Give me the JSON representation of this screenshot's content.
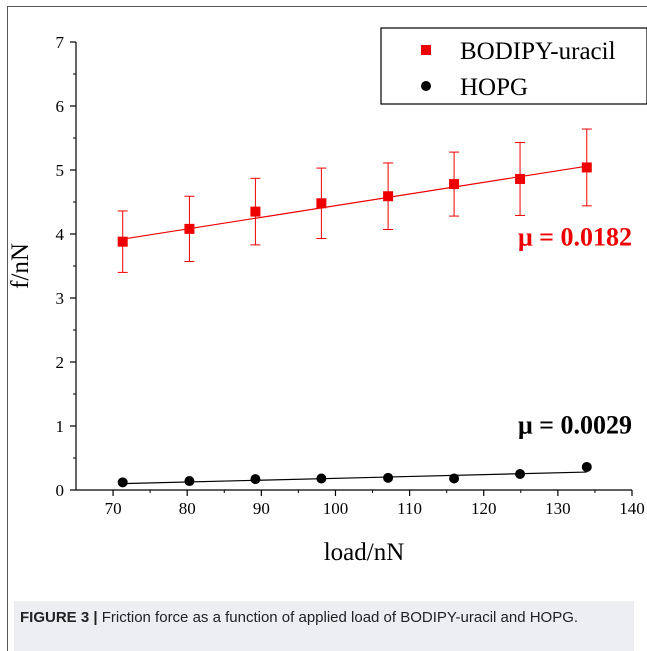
{
  "chart_data": {
    "type": "scatter",
    "xlabel": "load/nN",
    "ylabel": "f/nN",
    "xlim": [
      65,
      140
    ],
    "ylim": [
      0,
      7
    ],
    "xticks": [
      70,
      80,
      90,
      100,
      110,
      120,
      130,
      140
    ],
    "yticks": [
      0,
      1,
      2,
      3,
      4,
      5,
      6,
      7
    ],
    "grid": false,
    "legend_position": "top-right",
    "series": [
      {
        "name": "BODIPY-uracil",
        "color": "#ee0000",
        "marker": "square",
        "x": [
          71.3,
          80.3,
          89.2,
          98.1,
          107.1,
          116.0,
          124.9,
          133.9
        ],
        "y": [
          3.88,
          4.08,
          4.35,
          4.48,
          4.59,
          4.78,
          4.86,
          5.04
        ],
        "error_low": [
          0.48,
          0.51,
          0.52,
          0.55,
          0.52,
          0.5,
          0.57,
          0.6
        ],
        "error_high": [
          0.48,
          0.51,
          0.52,
          0.55,
          0.52,
          0.5,
          0.57,
          0.6
        ],
        "fit": {
          "x": [
            71.3,
            133.9
          ],
          "y": [
            3.92,
            5.06
          ]
        },
        "annotation": "μ = 0.0182"
      },
      {
        "name": "HOPG",
        "color": "#000000",
        "marker": "circle",
        "x": [
          71.3,
          80.3,
          89.2,
          98.1,
          107.1,
          116.0,
          124.9,
          133.9
        ],
        "y": [
          0.12,
          0.14,
          0.17,
          0.18,
          0.19,
          0.18,
          0.25,
          0.36
        ],
        "fit": {
          "x": [
            71.3,
            133.9
          ],
          "y": [
            0.1,
            0.28
          ]
        },
        "annotation": "μ = 0.0029"
      }
    ]
  },
  "caption": {
    "label": "FIGURE 3 |",
    "text": " Friction force as a function of applied load of BODIPY-uracil and HOPG."
  }
}
